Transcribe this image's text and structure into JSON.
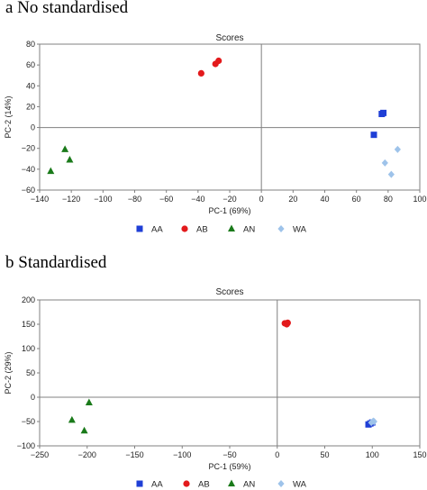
{
  "colors": {
    "AA": "#1f3fd6",
    "AB": "#e31a1c",
    "AN": "#1a7a1a",
    "WA": "#9ec3ea"
  },
  "markers": {
    "AA": "square",
    "AB": "circle",
    "AN": "triangle",
    "WA": "diamond"
  },
  "chart_data": [
    {
      "type": "scatter",
      "panel_label": "a  No standardised",
      "title": "Scores",
      "xlabel": "PC-1 (69%)",
      "ylabel": "PC-2 (14%)",
      "xlim": [
        -140,
        100
      ],
      "ylim": [
        -60,
        80
      ],
      "xticks": [
        -140,
        -120,
        -100,
        -80,
        -60,
        -40,
        -20,
        0,
        20,
        40,
        60,
        80,
        100
      ],
      "yticks": [
        -60,
        -40,
        -20,
        0,
        20,
        40,
        60,
        80
      ],
      "grid": false,
      "legend": "bottom",
      "series": [
        {
          "name": "AA",
          "points": [
            [
              76,
              13
            ],
            [
              77,
              14
            ],
            [
              71,
              -7
            ]
          ]
        },
        {
          "name": "AB",
          "points": [
            [
              -38,
              52
            ],
            [
              -29,
              61
            ],
            [
              -27,
              64
            ]
          ]
        },
        {
          "name": "AN",
          "points": [
            [
              -124,
              -21
            ],
            [
              -121,
              -31
            ],
            [
              -133,
              -42
            ]
          ]
        },
        {
          "name": "WA",
          "points": [
            [
              86,
              -21
            ],
            [
              78,
              -34
            ],
            [
              82,
              -45
            ]
          ]
        }
      ]
    },
    {
      "type": "scatter",
      "panel_label": "b  Standardised",
      "title": "Scores",
      "xlabel": "PC-1 (59%)",
      "ylabel": "PC-2 (29%)",
      "xlim": [
        -250,
        150
      ],
      "ylim": [
        -100,
        200
      ],
      "xticks": [
        -250,
        -200,
        -150,
        -100,
        -50,
        0,
        50,
        100,
        150
      ],
      "yticks": [
        -100,
        -50,
        0,
        50,
        100,
        150,
        200
      ],
      "grid": false,
      "legend": "bottom",
      "series": [
        {
          "name": "AA",
          "points": [
            [
              96,
              -56
            ],
            [
              98,
              -54
            ],
            [
              100,
              -52
            ]
          ]
        },
        {
          "name": "AB",
          "points": [
            [
              8,
              152
            ],
            [
              11,
              153
            ],
            [
              10,
              150
            ]
          ]
        },
        {
          "name": "AN",
          "points": [
            [
              -198,
              -11
            ],
            [
              -216,
              -47
            ],
            [
              -203,
              -69
            ]
          ]
        },
        {
          "name": "WA",
          "points": [
            [
              102,
              -50
            ],
            [
              99,
              -52
            ],
            [
              101,
              -49
            ]
          ]
        }
      ]
    }
  ]
}
